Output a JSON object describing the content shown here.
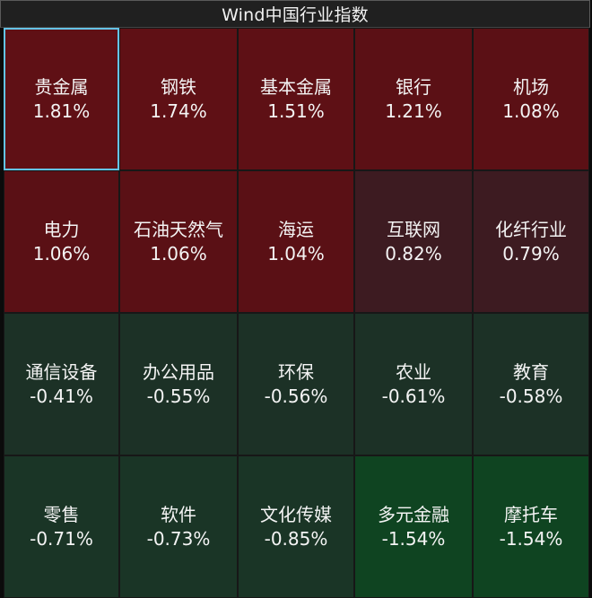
{
  "title": "Wind中国行业指数",
  "colors": {
    "up_strong": "#5f1015",
    "up_medium": "#571116",
    "up_weak": "#3b1b20",
    "down_weak": "#1d3325",
    "down_medium": "#173725",
    "down_strong": "#0f4421",
    "selected_border": "#64c3e6"
  },
  "tiles": [
    {
      "name": "贵金属",
      "change": "1.81%",
      "color": "#5f1015",
      "selected": true
    },
    {
      "name": "钢铁",
      "change": "1.74%",
      "color": "#5f1015",
      "selected": false
    },
    {
      "name": "基本金属",
      "change": "1.51%",
      "color": "#5e1015",
      "selected": false
    },
    {
      "name": "银行",
      "change": "1.21%",
      "color": "#5b1015",
      "selected": false
    },
    {
      "name": "机场",
      "change": "1.08%",
      "color": "#5b1015",
      "selected": false
    },
    {
      "name": "电力",
      "change": "1.06%",
      "color": "#5a1015",
      "selected": false
    },
    {
      "name": "石油天然气",
      "change": "1.06%",
      "color": "#5a1015",
      "selected": false
    },
    {
      "name": "海运",
      "change": "1.04%",
      "color": "#5a1015",
      "selected": false
    },
    {
      "name": "互联网",
      "change": "0.82%",
      "color": "#3d1b21",
      "selected": false
    },
    {
      "name": "化纤行业",
      "change": "0.79%",
      "color": "#3d1b21",
      "selected": false
    },
    {
      "name": "通信设备",
      "change": "-0.41%",
      "color": "#1c3126",
      "selected": false
    },
    {
      "name": "办公用品",
      "change": "-0.55%",
      "color": "#1c3126",
      "selected": false
    },
    {
      "name": "环保",
      "change": "-0.56%",
      "color": "#1c3126",
      "selected": false
    },
    {
      "name": "农业",
      "change": "-0.61%",
      "color": "#1c3126",
      "selected": false
    },
    {
      "name": "教育",
      "change": "-0.58%",
      "color": "#1c3126",
      "selected": false
    },
    {
      "name": "零售",
      "change": "-0.71%",
      "color": "#1a3526",
      "selected": false
    },
    {
      "name": "软件",
      "change": "-0.73%",
      "color": "#1a3526",
      "selected": false
    },
    {
      "name": "文化传媒",
      "change": "-0.85%",
      "color": "#1a3526",
      "selected": false
    },
    {
      "name": "多元金融",
      "change": "-1.54%",
      "color": "#0f4421",
      "selected": false
    },
    {
      "name": "摩托车",
      "change": "-1.54%",
      "color": "#0f4421",
      "selected": false
    }
  ]
}
